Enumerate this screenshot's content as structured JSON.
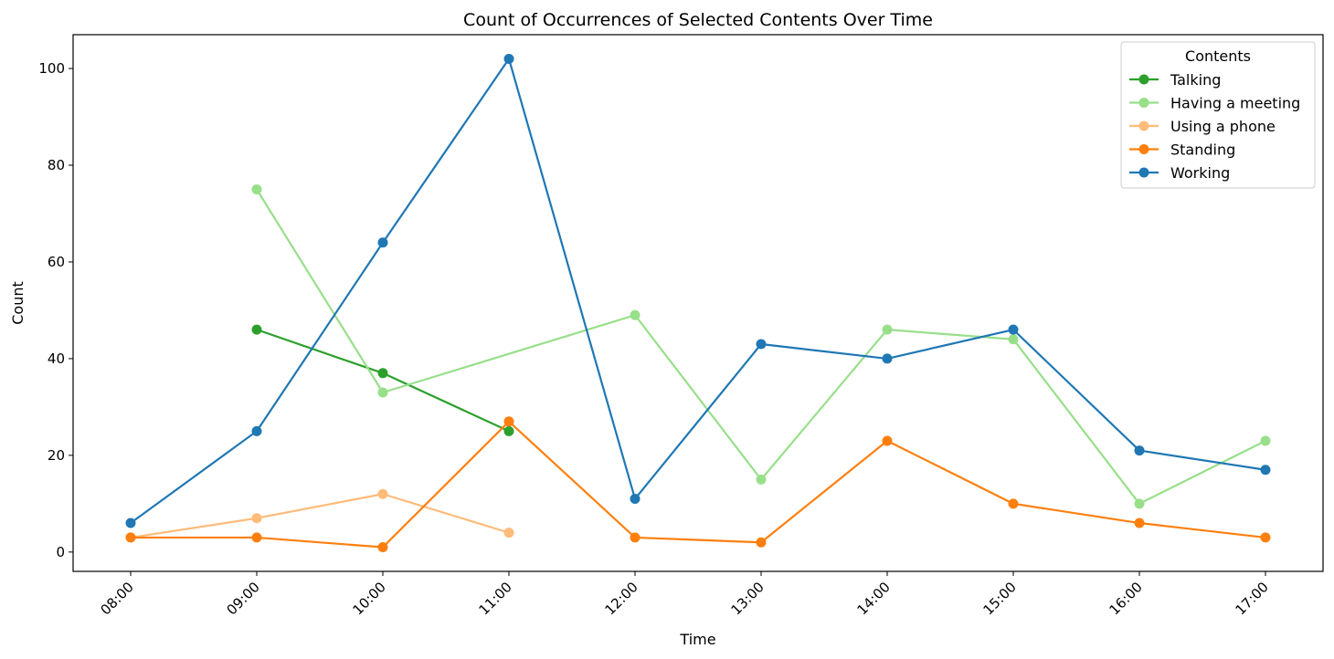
{
  "chart_data": {
    "type": "line",
    "title": "Count of Occurrences of Selected Contents Over Time",
    "xlabel": "Time",
    "ylabel": "Count",
    "categories": [
      "08:00",
      "09:00",
      "10:00",
      "11:00",
      "12:00",
      "13:00",
      "14:00",
      "15:00",
      "16:00",
      "17:00"
    ],
    "ylim": [
      -4,
      107
    ],
    "yticks": [
      0,
      20,
      40,
      60,
      80,
      100
    ],
    "grid": false,
    "legend": {
      "title": "Contents",
      "placement": "top-right"
    },
    "series": [
      {
        "name": "Talking",
        "color": "#2ca02c",
        "values": [
          null,
          46,
          37,
          25,
          null,
          null,
          null,
          null,
          null,
          null
        ]
      },
      {
        "name": "Having a meeting",
        "color": "#98df8a",
        "values": [
          null,
          75,
          33,
          null,
          49,
          15,
          46,
          44,
          10,
          23
        ]
      },
      {
        "name": "Using a phone",
        "color": "#ffbb78",
        "values": [
          3,
          7,
          12,
          4,
          null,
          null,
          null,
          null,
          null,
          null
        ]
      },
      {
        "name": "Standing",
        "color": "#ff7f0e",
        "values": [
          3,
          3,
          1,
          27,
          3,
          2,
          23,
          10,
          6,
          3
        ]
      },
      {
        "name": "Working",
        "color": "#1f77b4",
        "values": [
          6,
          25,
          64,
          102,
          11,
          43,
          40,
          46,
          21,
          17
        ]
      }
    ]
  }
}
